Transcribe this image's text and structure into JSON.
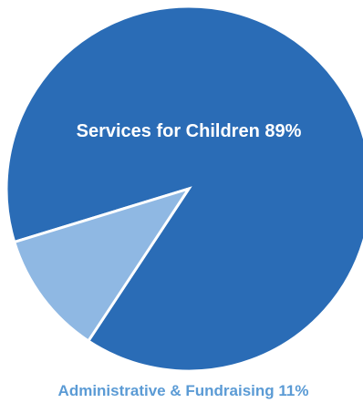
{
  "chart_data": {
    "type": "pie",
    "slices": [
      {
        "label": "Services for Children 89%",
        "value": 89,
        "color": "#2a6cb6",
        "label_color": "#ffffff"
      },
      {
        "label": "Administrative & Fundraising 11%",
        "value": 11,
        "color": "#8fb8e3",
        "label_color": "#5b9bd5"
      }
    ],
    "slice_border_color": "#ffffff",
    "start_angle_deg": 163,
    "direction": "clockwise"
  }
}
